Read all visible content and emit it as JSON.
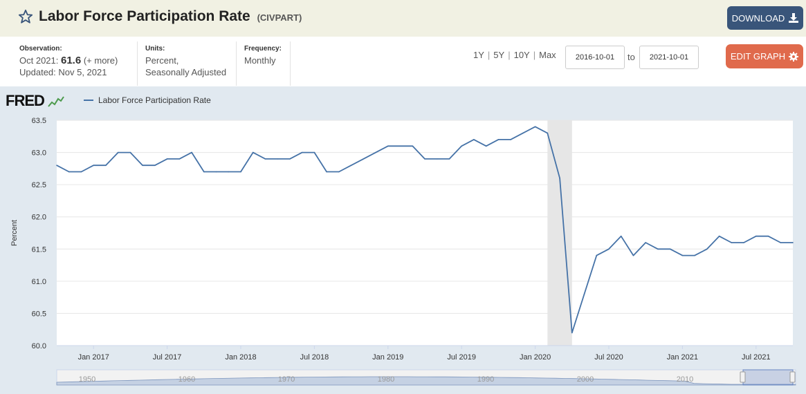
{
  "header": {
    "title": "Labor Force Participation Rate",
    "series_id": "(CIVPART)",
    "download_label": "DOWNLOAD"
  },
  "meta": {
    "observation_label": "Observation:",
    "observation_date": "Oct 2021:",
    "observation_value": "61.6",
    "observation_more": "(+ more)",
    "updated": "Updated: Nov 5, 2021",
    "units_label": "Units:",
    "units_line1": "Percent,",
    "units_line2": "Seasonally Adjusted",
    "frequency_label": "Frequency:",
    "frequency_value": "Monthly"
  },
  "controls": {
    "range_1y": "1Y",
    "range_5y": "5Y",
    "range_10y": "10Y",
    "range_max": "Max",
    "start_date": "2016-10-01",
    "to_label": "to",
    "end_date": "2021-10-01",
    "edit_label": "EDIT GRAPH"
  },
  "logo": "FRED",
  "colors": {
    "line": "#4572a7",
    "recession": "#e6e6e6",
    "header_bg": "#f1f1e3",
    "download_bg": "#39557a",
    "edit_bg": "#e06a4c",
    "chart_bg": "#e1e9f0"
  },
  "chart_data": {
    "type": "line",
    "ylabel": "Percent",
    "ylim": [
      60.0,
      63.5
    ],
    "yticks": [
      "60.0",
      "60.5",
      "61.0",
      "61.5",
      "62.0",
      "62.5",
      "63.0",
      "63.5"
    ],
    "xticks": [
      "Jan 2017",
      "Jul 2017",
      "Jan 2018",
      "Jul 2018",
      "Jan 2019",
      "Jul 2019",
      "Jan 2020",
      "Jul 2020",
      "Jan 2021",
      "Jul 2021"
    ],
    "navigator_ticks": [
      "1950",
      "1960",
      "1970",
      "1980",
      "1990",
      "2000",
      "2010"
    ],
    "grid": true,
    "legend": "top-left",
    "recession": {
      "start": "2020-02",
      "end": "2020-04"
    },
    "series": [
      {
        "name": "Labor Force Participation Rate",
        "x": [
          "2016-10",
          "2016-11",
          "2016-12",
          "2017-01",
          "2017-02",
          "2017-03",
          "2017-04",
          "2017-05",
          "2017-06",
          "2017-07",
          "2017-08",
          "2017-09",
          "2017-10",
          "2017-11",
          "2017-12",
          "2018-01",
          "2018-02",
          "2018-03",
          "2018-04",
          "2018-05",
          "2018-06",
          "2018-07",
          "2018-08",
          "2018-09",
          "2018-10",
          "2018-11",
          "2018-12",
          "2019-01",
          "2019-02",
          "2019-03",
          "2019-04",
          "2019-05",
          "2019-06",
          "2019-07",
          "2019-08",
          "2019-09",
          "2019-10",
          "2019-11",
          "2019-12",
          "2020-01",
          "2020-02",
          "2020-03",
          "2020-04",
          "2020-05",
          "2020-06",
          "2020-07",
          "2020-08",
          "2020-09",
          "2020-10",
          "2020-11",
          "2020-12",
          "2021-01",
          "2021-02",
          "2021-03",
          "2021-04",
          "2021-05",
          "2021-06",
          "2021-07",
          "2021-08",
          "2021-09",
          "2021-10"
        ],
        "values": [
          62.8,
          62.7,
          62.7,
          62.8,
          62.8,
          63.0,
          63.0,
          62.8,
          62.8,
          62.9,
          62.9,
          63.0,
          62.7,
          62.7,
          62.7,
          62.7,
          63.0,
          62.9,
          62.9,
          62.9,
          63.0,
          63.0,
          62.7,
          62.7,
          62.8,
          62.9,
          63.0,
          63.1,
          63.1,
          63.1,
          62.9,
          62.9,
          62.9,
          63.1,
          63.2,
          63.1,
          63.2,
          63.2,
          63.3,
          63.4,
          63.3,
          62.6,
          60.2,
          60.8,
          61.4,
          61.5,
          61.7,
          61.4,
          61.6,
          61.5,
          61.5,
          61.4,
          61.4,
          61.5,
          61.7,
          61.6,
          61.6,
          61.7,
          61.7,
          61.6,
          61.6
        ]
      }
    ]
  }
}
